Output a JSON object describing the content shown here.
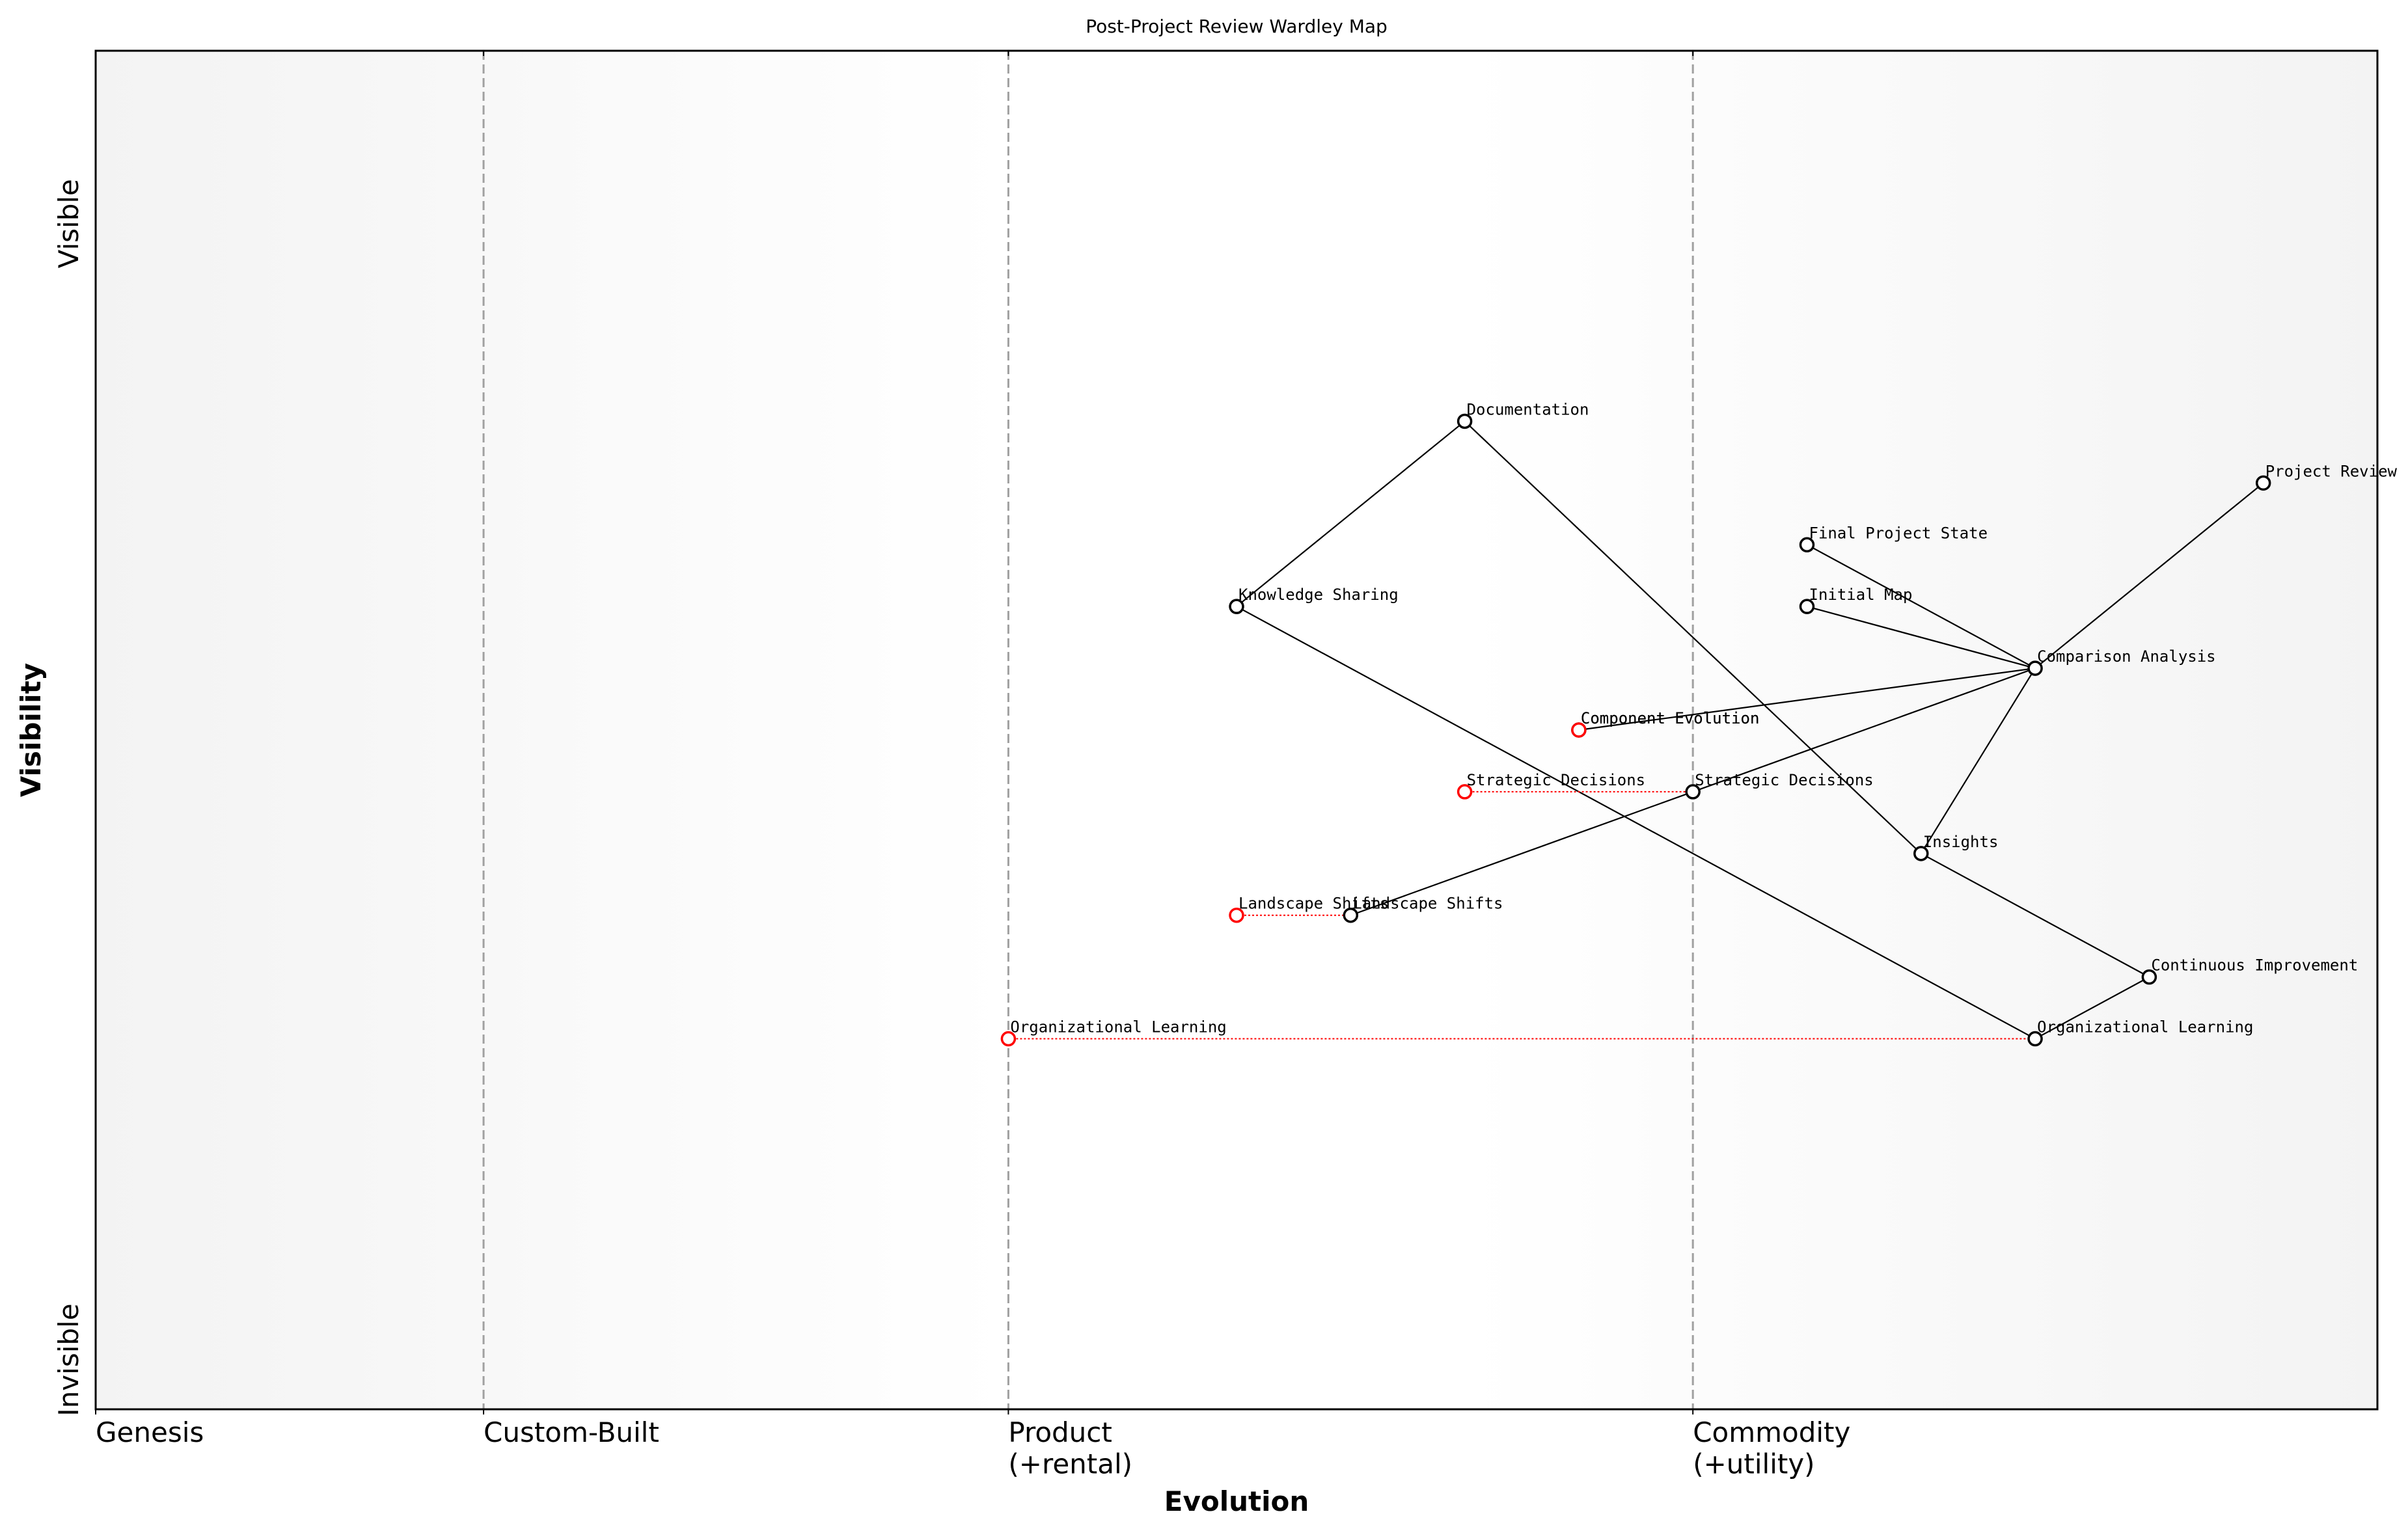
{
  "chart_data": {
    "type": "wardley",
    "title": "Post-Project Review Wardley Map",
    "xlabel": "Evolution",
    "ylabel": "Visibility",
    "xlim": [
      0,
      1
    ],
    "ylim": [
      0,
      1.1
    ],
    "xticks": [
      {
        "value": 0,
        "label": "Genesis"
      },
      {
        "value": 0.17,
        "label": "Custom-Built"
      },
      {
        "value": 0.4,
        "label": "Product\n(+rental)"
      },
      {
        "value": 0.7,
        "label": "Commodity\n(+utility)"
      }
    ],
    "yticks": [
      {
        "value": 0.96,
        "label": "Visible"
      },
      {
        "value": 0.04,
        "label": "Invisible"
      }
    ],
    "color": "#000000",
    "evolution_color": "#ff0000",
    "components": [
      {
        "name": "Project Review",
        "x": 0.95,
        "y": 0.75
      },
      {
        "name": "Documentation",
        "x": 0.6,
        "y": 0.8
      },
      {
        "name": "Final Project State",
        "x": 0.75,
        "y": 0.7
      },
      {
        "name": "Initial Map",
        "x": 0.75,
        "y": 0.65
      },
      {
        "name": "Knowledge Sharing",
        "x": 0.5,
        "y": 0.65
      },
      {
        "name": "Comparison Analysis",
        "x": 0.85,
        "y": 0.6
      },
      {
        "name": "Component Evolution",
        "x": 0.65,
        "y": 0.55
      },
      {
        "name": "Strategic Decisions",
        "x": 0.7,
        "y": 0.5
      },
      {
        "name": "Insights",
        "x": 0.8,
        "y": 0.45
      },
      {
        "name": "Landscape Shifts",
        "x": 0.55,
        "y": 0.4
      },
      {
        "name": "Continuous Improvement",
        "x": 0.9,
        "y": 0.35
      },
      {
        "name": "Organizational Learning",
        "x": 0.85,
        "y": 0.3
      }
    ],
    "links": [
      {
        "from": "Project Review",
        "to": "Comparison Analysis"
      },
      {
        "from": "Final Project State",
        "to": "Comparison Analysis"
      },
      {
        "from": "Initial Map",
        "to": "Comparison Analysis"
      },
      {
        "from": "Comparison Analysis",
        "to": "Component Evolution"
      },
      {
        "from": "Comparison Analysis",
        "to": "Strategic Decisions"
      },
      {
        "from": "Strategic Decisions",
        "to": "Landscape Shifts"
      },
      {
        "from": "Comparison Analysis",
        "to": "Insights"
      },
      {
        "from": "Insights",
        "to": "Continuous Improvement"
      },
      {
        "from": "Continuous Improvement",
        "to": "Organizational Learning"
      },
      {
        "from": "Organizational Learning",
        "to": "Knowledge Sharing"
      },
      {
        "from": "Knowledge Sharing",
        "to": "Documentation"
      },
      {
        "from": "Documentation",
        "to": "Insights"
      }
    ],
    "evolutions": [
      {
        "name": "Component Evolution",
        "x": 0.65,
        "y": 0.55
      },
      {
        "name": "Strategic Decisions",
        "x": 0.6,
        "y": 0.5
      },
      {
        "name": "Landscape Shifts",
        "x": 0.5,
        "y": 0.4
      },
      {
        "name": "Organizational Learning",
        "x": 0.4,
        "y": 0.3
      }
    ]
  }
}
